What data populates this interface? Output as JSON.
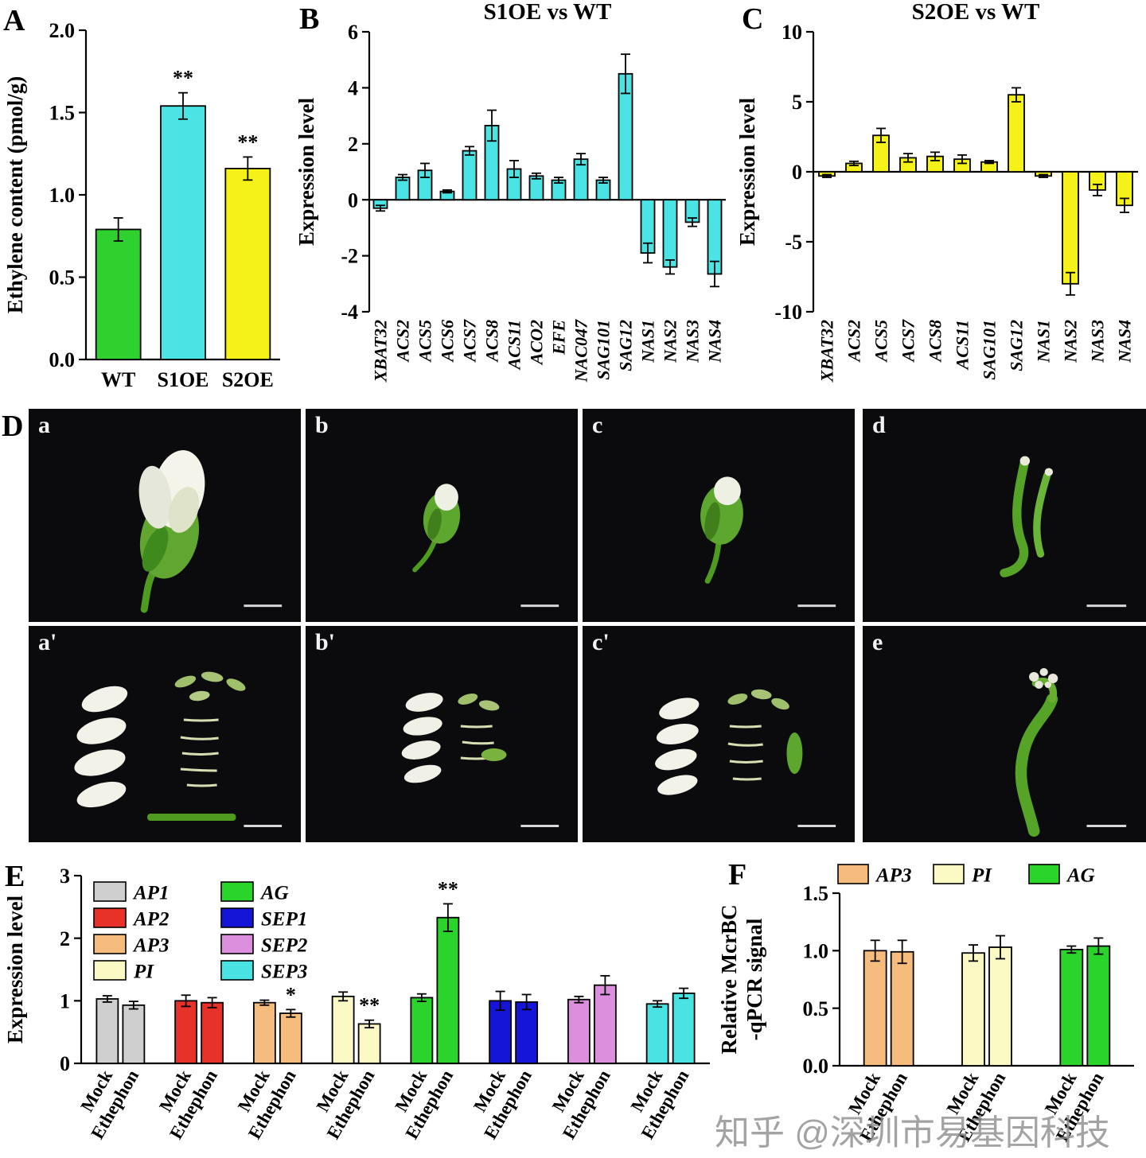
{
  "panel_labels": {
    "A": "A",
    "B": "B",
    "C": "C",
    "D": "D",
    "E": "E",
    "F": "F"
  },
  "photo_labels": [
    "a",
    "b",
    "c",
    "d",
    "a'",
    "b'",
    "c'",
    "e"
  ],
  "watermark": "知乎 @深圳市易基因科技",
  "chart_data": [
    {
      "id": "A",
      "type": "bar",
      "title": "",
      "ylabel": "Ethylene content (pmol/g)",
      "ylim": [
        0,
        2.0
      ],
      "yticks": [
        0,
        0.5,
        1.0,
        1.5,
        2.0
      ],
      "ytick_labels": [
        "0.0",
        "0.5",
        "1.0",
        "1.5",
        "2.0"
      ],
      "bars": [
        {
          "label": "WT",
          "value": 0.79,
          "error": 0.07,
          "sig": "",
          "color": "#2ed12e"
        },
        {
          "label": "S1OE",
          "value": 1.54,
          "error": 0.08,
          "sig": "**",
          "color": "#4ae4e4"
        },
        {
          "label": "S2OE",
          "value": 1.16,
          "error": 0.07,
          "sig": "**",
          "color": "#f4f218"
        }
      ]
    },
    {
      "id": "B",
      "type": "bar",
      "title": "S1OE vs WT",
      "ylabel": "Expression level",
      "ylim": [
        -4,
        6
      ],
      "yticks": [
        -4,
        -2,
        0,
        2,
        4,
        6
      ],
      "ytick_labels": [
        "-4",
        "-2",
        "0",
        "2",
        "4",
        "6"
      ],
      "bar_color": "#4ae4e4",
      "bars": [
        {
          "label": "XBAT32",
          "value": -0.3,
          "error": 0.1,
          "sig": ""
        },
        {
          "label": "ACS2",
          "value": 0.8,
          "error": 0.1,
          "sig": ""
        },
        {
          "label": "ACS5",
          "value": 1.05,
          "error": 0.25,
          "sig": ""
        },
        {
          "label": "ACS6",
          "value": 0.3,
          "error": 0.05,
          "sig": ""
        },
        {
          "label": "ACS7",
          "value": 1.75,
          "error": 0.15,
          "sig": ""
        },
        {
          "label": "ACS8",
          "value": 2.65,
          "error": 0.55,
          "sig": ""
        },
        {
          "label": "ACS11",
          "value": 1.1,
          "error": 0.3,
          "sig": ""
        },
        {
          "label": "ACO2",
          "value": 0.85,
          "error": 0.1,
          "sig": ""
        },
        {
          "label": "EFE",
          "value": 0.7,
          "error": 0.1,
          "sig": ""
        },
        {
          "label": "NAC047",
          "value": 1.45,
          "error": 0.2,
          "sig": ""
        },
        {
          "label": "SAG101",
          "value": 0.7,
          "error": 0.1,
          "sig": ""
        },
        {
          "label": "SAG12",
          "value": 4.5,
          "error": 0.7,
          "sig": ""
        },
        {
          "label": "NAS1",
          "value": -1.9,
          "error": 0.35,
          "sig": ""
        },
        {
          "label": "NAS2",
          "value": -2.4,
          "error": 0.25,
          "sig": ""
        },
        {
          "label": "NAS3",
          "value": -0.8,
          "error": 0.15,
          "sig": ""
        },
        {
          "label": "NAS4",
          "value": -2.65,
          "error": 0.45,
          "sig": ""
        }
      ]
    },
    {
      "id": "C",
      "type": "bar",
      "title": "S2OE vs WT",
      "ylabel": "Expression level",
      "ylim": [
        -10,
        10
      ],
      "yticks": [
        -10,
        -5,
        0,
        5,
        10
      ],
      "ytick_labels": [
        "-10",
        "-5",
        "0",
        "5",
        "10"
      ],
      "bar_color": "#f4f218",
      "bars": [
        {
          "label": "XBAT32",
          "value": -0.3,
          "error": 0.1,
          "sig": ""
        },
        {
          "label": "ACS2",
          "value": 0.6,
          "error": 0.15,
          "sig": ""
        },
        {
          "label": "ACS5",
          "value": 2.6,
          "error": 0.5,
          "sig": ""
        },
        {
          "label": "ACS7",
          "value": 1.0,
          "error": 0.3,
          "sig": ""
        },
        {
          "label": "ACS8",
          "value": 1.1,
          "error": 0.3,
          "sig": ""
        },
        {
          "label": "ACS11",
          "value": 0.9,
          "error": 0.3,
          "sig": ""
        },
        {
          "label": "SAG101",
          "value": 0.7,
          "error": 0.1,
          "sig": ""
        },
        {
          "label": "SAG12",
          "value": 5.5,
          "error": 0.5,
          "sig": ""
        },
        {
          "label": "NAS1",
          "value": -0.3,
          "error": 0.1,
          "sig": ""
        },
        {
          "label": "NAS2",
          "value": -8.0,
          "error": 0.8,
          "sig": ""
        },
        {
          "label": "NAS3",
          "value": -1.3,
          "error": 0.4,
          "sig": ""
        },
        {
          "label": "NAS4",
          "value": -2.4,
          "error": 0.5,
          "sig": ""
        }
      ]
    },
    {
      "id": "E",
      "type": "bar",
      "title": "",
      "ylabel": "Expression level",
      "ylim": [
        0,
        3
      ],
      "yticks": [
        0,
        1,
        2,
        3
      ],
      "ytick_labels": [
        "0",
        "1",
        "2",
        "3"
      ],
      "legend": [
        {
          "label": "AP1",
          "color": "#cfcfcf"
        },
        {
          "label": "AP2",
          "color": "#e63229"
        },
        {
          "label": "AP3",
          "color": "#f6bc7e"
        },
        {
          "label": "PI",
          "color": "#fbf9c4"
        },
        {
          "label": "AG",
          "color": "#2bd42b"
        },
        {
          "label": "SEP1",
          "color": "#1515d8"
        },
        {
          "label": "SEP2",
          "color": "#dc8fdc"
        },
        {
          "label": "SEP3",
          "color": "#49e3e3"
        }
      ],
      "bars": [
        {
          "label": "Mock",
          "value": 1.03,
          "error": 0.05,
          "sig": "",
          "color": "#cfcfcf"
        },
        {
          "label": "Ethephon",
          "value": 0.93,
          "error": 0.06,
          "sig": "",
          "color": "#cfcfcf"
        },
        {
          "label": "Mock",
          "value": 1.0,
          "error": 0.09,
          "sig": "",
          "color": "#e63229"
        },
        {
          "label": "Ethephon",
          "value": 0.97,
          "error": 0.08,
          "sig": "",
          "color": "#e63229"
        },
        {
          "label": "Mock",
          "value": 0.97,
          "error": 0.04,
          "sig": "",
          "color": "#f6bc7e"
        },
        {
          "label": "Ethephon",
          "value": 0.8,
          "error": 0.06,
          "sig": "*",
          "color": "#f6bc7e"
        },
        {
          "label": "Mock",
          "value": 1.07,
          "error": 0.07,
          "sig": "",
          "color": "#fbf9c4"
        },
        {
          "label": "Ethephon",
          "value": 0.63,
          "error": 0.06,
          "sig": "**",
          "color": "#fbf9c4"
        },
        {
          "label": "Mock",
          "value": 1.05,
          "error": 0.06,
          "sig": "",
          "color": "#2bd42b"
        },
        {
          "label": "Ethephon",
          "value": 2.33,
          "error": 0.22,
          "sig": "**",
          "color": "#2bd42b"
        },
        {
          "label": "Mock",
          "value": 1.0,
          "error": 0.15,
          "sig": "",
          "color": "#1515d8"
        },
        {
          "label": "Ethephon",
          "value": 0.98,
          "error": 0.12,
          "sig": "",
          "color": "#1515d8"
        },
        {
          "label": "Mock",
          "value": 1.02,
          "error": 0.05,
          "sig": "",
          "color": "#dc8fdc"
        },
        {
          "label": "Ethephon",
          "value": 1.25,
          "error": 0.15,
          "sig": "",
          "color": "#dc8fdc"
        },
        {
          "label": "Mock",
          "value": 0.95,
          "error": 0.05,
          "sig": "",
          "color": "#49e3e3"
        },
        {
          "label": "Ethephon",
          "value": 1.12,
          "error": 0.08,
          "sig": "",
          "color": "#49e3e3"
        }
      ]
    },
    {
      "id": "F",
      "type": "bar",
      "title": "",
      "ylabel_lines": [
        "Relative McrBC",
        "-qPCR signal"
      ],
      "ylim": [
        0,
        1.5
      ],
      "yticks": [
        0,
        0.5,
        1.0,
        1.5
      ],
      "ytick_labels": [
        "0.0",
        "0.5",
        "1.0",
        "1.5"
      ],
      "legend": [
        {
          "label": "AP3",
          "color": "#f6bc7e"
        },
        {
          "label": "PI",
          "color": "#fbf9c4"
        },
        {
          "label": "AG",
          "color": "#2bd42b"
        }
      ],
      "bars": [
        {
          "label": "Mock",
          "value": 1.0,
          "error": 0.09,
          "sig": "",
          "color": "#f6bc7e"
        },
        {
          "label": "Ethephon",
          "value": 0.99,
          "error": 0.1,
          "sig": "",
          "color": "#f6bc7e"
        },
        {
          "label": "Mock",
          "value": 0.98,
          "error": 0.07,
          "sig": "",
          "color": "#fbf9c4"
        },
        {
          "label": "Ethephon",
          "value": 1.03,
          "error": 0.1,
          "sig": "",
          "color": "#fbf9c4"
        },
        {
          "label": "Mock",
          "value": 1.01,
          "error": 0.03,
          "sig": "",
          "color": "#2bd42b"
        },
        {
          "label": "Ethephon",
          "value": 1.04,
          "error": 0.07,
          "sig": "",
          "color": "#2bd42b"
        }
      ]
    }
  ]
}
